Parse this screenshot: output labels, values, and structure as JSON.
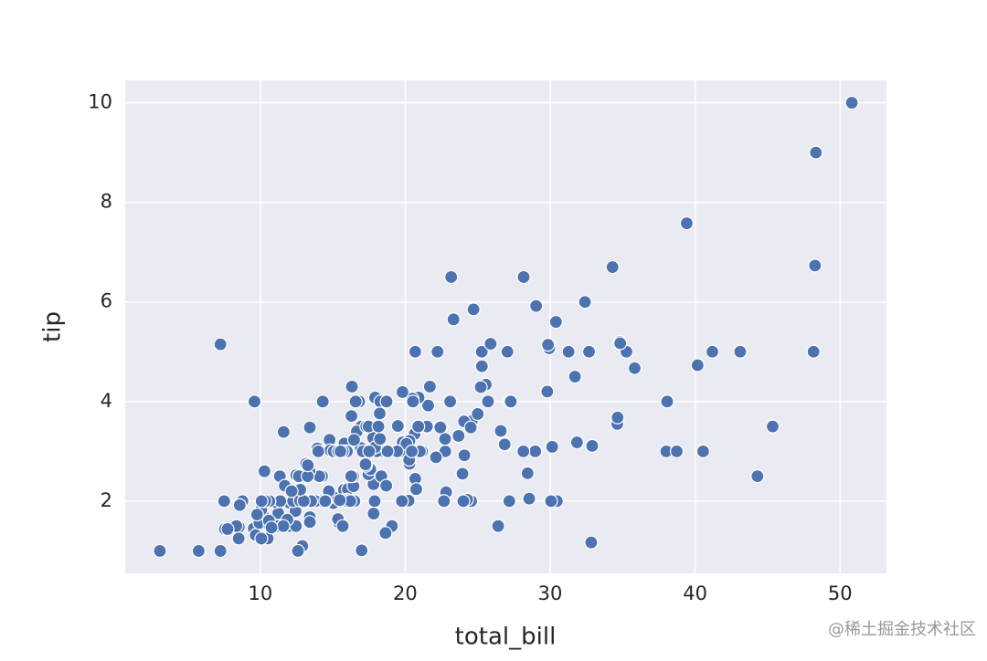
{
  "chart_data": {
    "type": "scatter",
    "xlabel": "total_bill",
    "ylabel": "tip",
    "color": "#4c72b0",
    "background": "#eaeaf2",
    "grid": true,
    "xlim": [
      0.68,
      53.2
    ],
    "ylim": [
      0.55,
      10.45
    ],
    "xticks": [
      10,
      20,
      30,
      40,
      50
    ],
    "yticks": [
      2,
      4,
      6,
      8,
      10
    ],
    "x": [
      16.99,
      10.34,
      21.01,
      23.68,
      24.59,
      25.29,
      8.77,
      26.88,
      15.04,
      14.78,
      10.27,
      35.26,
      15.42,
      18.43,
      14.83,
      21.58,
      10.33,
      16.29,
      16.97,
      20.65,
      17.92,
      20.29,
      15.77,
      39.42,
      19.82,
      17.81,
      13.37,
      12.69,
      21.7,
      19.65,
      9.55,
      18.35,
      15.06,
      20.69,
      17.78,
      24.06,
      16.31,
      16.93,
      18.69,
      31.27,
      16.04,
      17.46,
      13.94,
      9.68,
      30.4,
      18.29,
      22.23,
      32.4,
      28.55,
      18.04,
      12.54,
      10.29,
      34.81,
      9.94,
      25.56,
      19.49,
      38.01,
      26.41,
      11.24,
      48.27,
      20.29,
      13.81,
      11.02,
      18.29,
      17.59,
      20.08,
      16.45,
      3.07,
      20.23,
      15.01,
      12.02,
      17.07,
      26.86,
      25.28,
      14.73,
      10.51,
      17.92,
      27.2,
      22.76,
      17.29,
      19.44,
      16.66,
      10.07,
      32.68,
      15.98,
      34.83,
      13.03,
      18.28,
      24.71,
      21.16,
      28.97,
      22.49,
      5.75,
      16.32,
      22.75,
      40.17,
      27.28,
      12.03,
      21.01,
      12.46,
      11.35,
      15.38,
      44.3,
      22.42,
      20.92,
      15.36,
      20.49,
      25.21,
      18.24,
      14.31,
      14.0,
      7.25,
      38.07,
      23.95,
      25.71,
      17.31,
      29.93,
      10.65,
      12.43,
      24.08,
      11.69,
      13.42,
      14.26,
      15.95,
      12.48,
      29.8,
      8.52,
      14.52,
      11.38,
      22.82,
      19.08,
      20.27,
      11.17,
      12.26,
      18.26,
      8.51,
      10.33,
      14.15,
      16.0,
      13.16,
      17.47,
      34.3,
      41.19,
      27.05,
      16.43,
      8.35,
      18.64,
      11.87,
      9.78,
      7.51,
      14.07,
      13.13,
      17.26,
      24.55,
      19.77,
      29.85,
      48.17,
      25.0,
      13.39,
      16.49,
      21.5,
      12.66,
      16.21,
      13.81,
      17.51,
      24.52,
      20.76,
      31.71,
      10.59,
      10.63,
      50.81,
      15.81,
      7.25,
      31.85,
      16.82,
      32.9,
      17.89,
      14.48,
      9.6,
      34.63,
      34.65,
      23.33,
      45.35,
      23.17,
      40.55,
      20.69,
      20.9,
      30.46,
      18.15,
      23.1,
      15.69,
      19.81,
      28.44,
      15.48,
      16.58,
      7.56,
      10.34,
      43.11,
      13.0,
      13.51,
      18.71,
      12.74,
      13.0,
      16.4,
      20.53,
      16.47,
      26.59,
      38.73,
      24.27,
      12.76,
      30.06,
      25.89,
      48.33,
      13.27,
      28.17,
      12.9,
      28.15,
      11.59,
      7.74,
      30.14,
      12.16,
      13.42,
      8.58,
      15.98,
      13.42,
      16.27,
      10.09,
      20.45,
      13.28,
      22.12,
      24.01,
      15.69,
      11.61,
      10.77,
      15.53,
      10.07,
      12.6,
      32.83,
      35.83,
      29.03,
      27.18,
      22.67,
      17.82,
      18.78
    ],
    "values": [
      1.01,
      1.66,
      3.5,
      3.31,
      3.61,
      4.71,
      2.0,
      3.12,
      1.96,
      3.23,
      1.71,
      5.0,
      1.57,
      3.0,
      3.02,
      3.92,
      1.67,
      3.71,
      3.5,
      3.35,
      4.08,
      2.75,
      2.23,
      7.58,
      3.18,
      2.34,
      2.0,
      2.0,
      4.3,
      3.0,
      1.45,
      2.5,
      3.0,
      2.45,
      3.27,
      3.6,
      2.0,
      3.07,
      2.31,
      5.0,
      2.24,
      2.54,
      3.06,
      1.32,
      5.6,
      3.0,
      5.0,
      6.0,
      2.05,
      3.0,
      2.5,
      2.6,
      5.2,
      1.56,
      4.34,
      3.51,
      3.0,
      1.5,
      1.76,
      6.73,
      3.21,
      2.0,
      1.98,
      3.76,
      2.64,
      3.15,
      2.47,
      1.0,
      2.01,
      2.09,
      1.97,
      3.0,
      3.14,
      5.0,
      2.2,
      1.25,
      3.08,
      4.0,
      3.0,
      2.71,
      3.0,
      3.4,
      1.83,
      5.0,
      2.03,
      5.17,
      2.0,
      4.0,
      5.85,
      3.0,
      3.0,
      3.5,
      1.0,
      4.3,
      3.25,
      4.73,
      4.0,
      1.5,
      3.0,
      1.5,
      2.5,
      3.0,
      2.5,
      3.48,
      4.08,
      1.64,
      4.06,
      4.29,
      3.76,
      4.0,
      3.0,
      1.0,
      4.0,
      2.55,
      4.0,
      3.5,
      5.07,
      1.5,
      1.8,
      2.92,
      2.31,
      1.68,
      2.5,
      2.0,
      2.52,
      4.2,
      1.48,
      2.0,
      2.0,
      2.18,
      1.5,
      2.83,
      1.5,
      2.0,
      3.25,
      1.25,
      2.0,
      2.0,
      2.0,
      2.75,
      3.5,
      6.7,
      5.0,
      5.0,
      2.3,
      1.5,
      1.36,
      1.63,
      1.73,
      2.0,
      2.5,
      2.0,
      2.74,
      2.0,
      2.0,
      5.14,
      5.0,
      3.75,
      2.61,
      2.0,
      3.5,
      2.5,
      2.0,
      2.0,
      3.0,
      3.48,
      2.24,
      4.5,
      1.61,
      2.0,
      10.0,
      3.16,
      5.15,
      3.18,
      4.0,
      3.11,
      2.0,
      2.0,
      4.0,
      3.55,
      3.68,
      5.65,
      3.5,
      6.5,
      3.0,
      5.0,
      3.5,
      2.0,
      3.5,
      4.0,
      1.5,
      4.19,
      2.56,
      2.02,
      4.0,
      1.44,
      2.0,
      5.0,
      2.0,
      2.0,
      4.0,
      2.01,
      2.0,
      2.5,
      4.0,
      3.23,
      3.41,
      3.0,
      2.03,
      2.23,
      2.0,
      5.16,
      9.0,
      2.5,
      6.5,
      1.1,
      3.0,
      1.5,
      1.44,
      3.09,
      2.2,
      3.48,
      1.92,
      3.0,
      1.58,
      2.5,
      2.0,
      3.0,
      2.72,
      2.88,
      2.0,
      3.0,
      3.39,
      1.47,
      3.0,
      1.25,
      1.0,
      1.17,
      4.67,
      5.92,
      2.0,
      2.0,
      1.75,
      3.0
    ]
  },
  "watermark": "@稀土掘金技术社区"
}
